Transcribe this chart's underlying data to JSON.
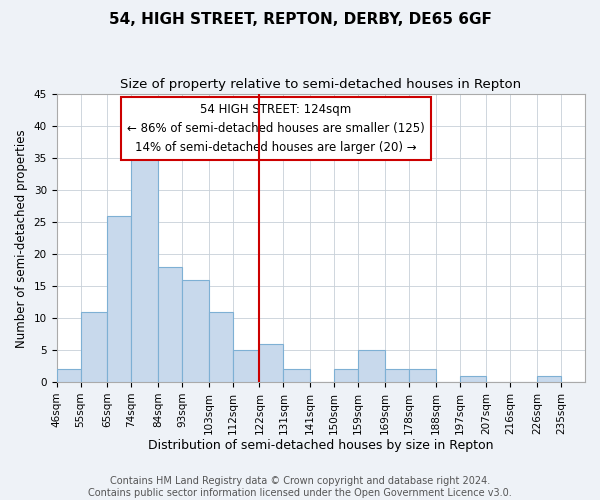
{
  "title": "54, HIGH STREET, REPTON, DERBY, DE65 6GF",
  "subtitle": "Size of property relative to semi-detached houses in Repton",
  "xlabel": "Distribution of semi-detached houses by size in Repton",
  "ylabel": "Number of semi-detached properties",
  "footer_line1": "Contains HM Land Registry data © Crown copyright and database right 2024.",
  "footer_line2": "Contains public sector information licensed under the Open Government Licence v3.0.",
  "bin_labels": [
    "46sqm",
    "55sqm",
    "65sqm",
    "74sqm",
    "84sqm",
    "93sqm",
    "103sqm",
    "112sqm",
    "122sqm",
    "131sqm",
    "141sqm",
    "150sqm",
    "159sqm",
    "169sqm",
    "178sqm",
    "188sqm",
    "197sqm",
    "207sqm",
    "216sqm",
    "226sqm",
    "235sqm"
  ],
  "bin_edges": [
    46,
    55,
    65,
    74,
    84,
    93,
    103,
    112,
    122,
    131,
    141,
    150,
    159,
    169,
    178,
    188,
    197,
    207,
    216,
    226,
    235,
    244
  ],
  "bar_heights": [
    2,
    11,
    26,
    36,
    18,
    16,
    11,
    5,
    6,
    2,
    0,
    2,
    5,
    2,
    2,
    0,
    1,
    0,
    0,
    1,
    0
  ],
  "bar_fill_color": "#c8d9ec",
  "bar_edge_color": "#7eb0d4",
  "vline_color": "#cc0000",
  "vline_x": 122,
  "annotation_box_edge_color": "#cc0000",
  "annotation_title": "54 HIGH STREET: 124sqm",
  "annotation_line1": "← 86% of semi-detached houses are smaller (125)",
  "annotation_line2": "14% of semi-detached houses are larger (20) →",
  "ylim": [
    0,
    45
  ],
  "yticks": [
    0,
    5,
    10,
    15,
    20,
    25,
    30,
    35,
    40,
    45
  ],
  "background_color": "#eef2f7",
  "plot_background_color": "#ffffff",
  "grid_color": "#c8d0d8",
  "title_fontsize": 11,
  "subtitle_fontsize": 9.5,
  "xlabel_fontsize": 9,
  "ylabel_fontsize": 8.5,
  "tick_fontsize": 7.5,
  "annotation_fontsize": 8.5,
  "footer_fontsize": 7
}
